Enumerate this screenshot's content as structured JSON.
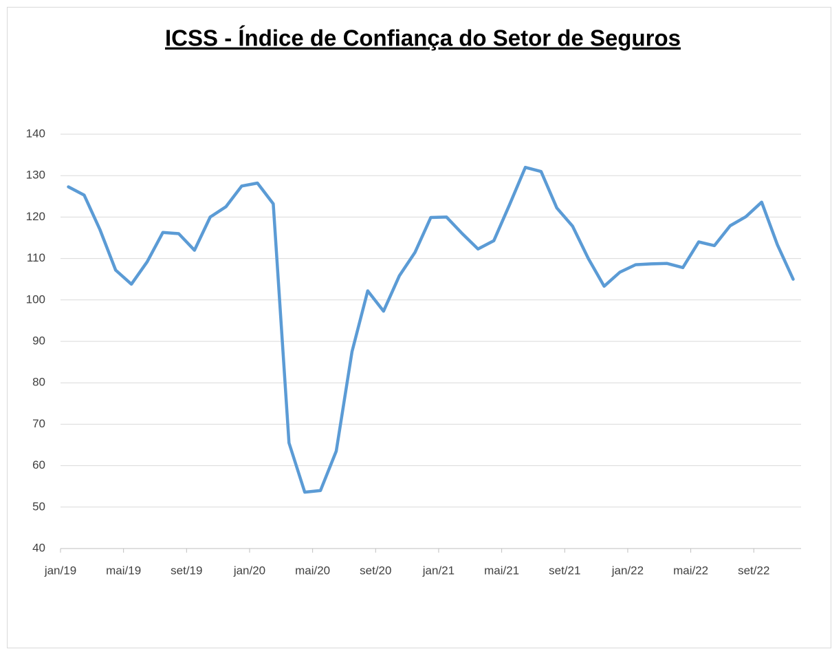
{
  "chart_data": {
    "type": "line",
    "title": "ICSS - Índice de Confiança do Setor de Seguros",
    "categories": [
      "jan/19",
      null,
      null,
      null,
      "mai/19",
      null,
      null,
      null,
      "set/19",
      null,
      null,
      null,
      "jan/20",
      null,
      null,
      null,
      "mai/20",
      null,
      null,
      null,
      "set/20",
      null,
      null,
      null,
      "jan/21",
      null,
      null,
      null,
      "mai/21",
      null,
      null,
      null,
      "set/21",
      null,
      null,
      null,
      "jan/22",
      null,
      null,
      null,
      "mai/22",
      null,
      null,
      null,
      "set/22",
      null,
      null
    ],
    "series": [
      {
        "name": "ICSS",
        "color": "#5b9bd5",
        "values": [
          127.3,
          125.3,
          117,
          107.2,
          103.8,
          109.2,
          116.3,
          116,
          112,
          120,
          122.5,
          127.5,
          128.2,
          123.2,
          65.5,
          53.6,
          54,
          63.5,
          87.5,
          102.2,
          97.3,
          105.8,
          111.5,
          119.9,
          120,
          116,
          112.3,
          114.3,
          123,
          132,
          131,
          122.2,
          117.8,
          110,
          103.3,
          106.7,
          108.5,
          108.7,
          108.8,
          107.8,
          114,
          113.1,
          117.9,
          120.1,
          123.6,
          113.3,
          105
        ]
      }
    ],
    "ylim": [
      40,
      140
    ],
    "yticks": [
      40,
      50,
      60,
      70,
      80,
      90,
      100,
      110,
      120,
      130,
      140
    ],
    "grid": true
  }
}
